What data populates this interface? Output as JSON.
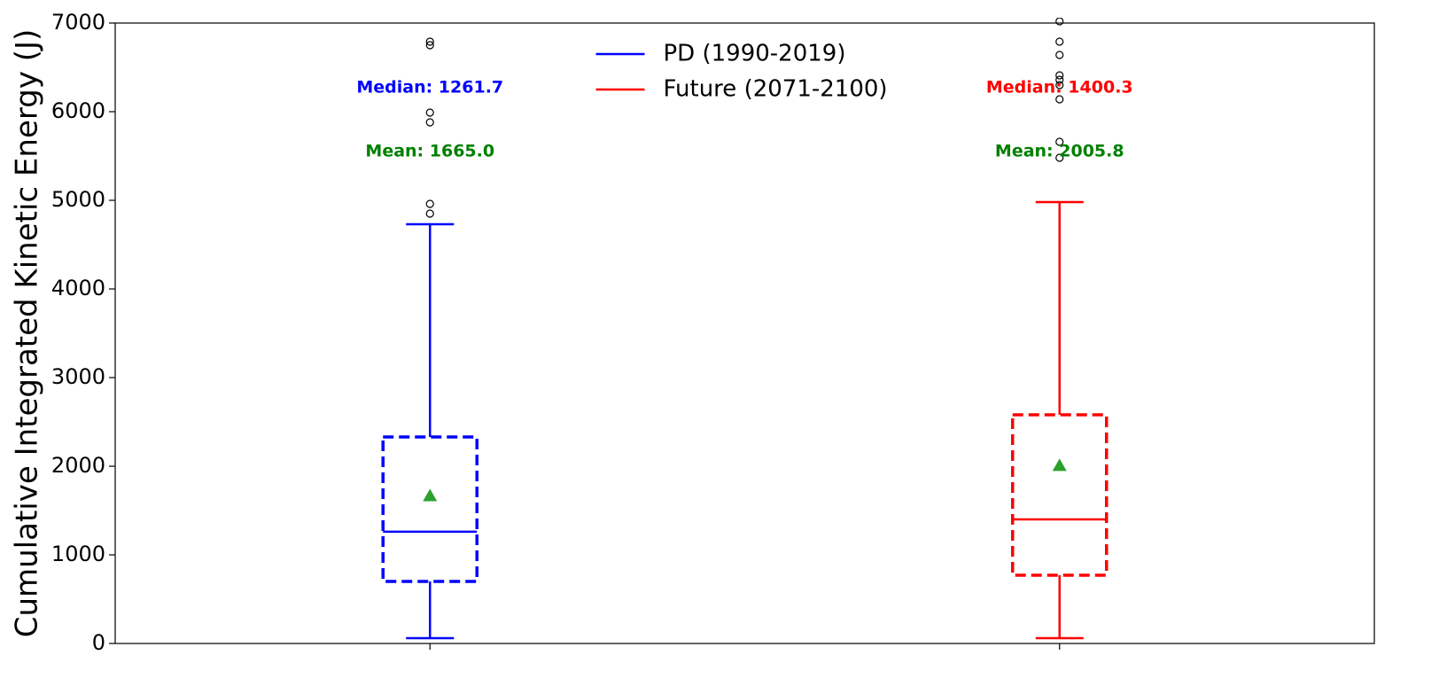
{
  "chart_data": {
    "type": "box",
    "ylabel": "Cumulative Integrated Kinetic Energy (J)",
    "ylim": [
      0,
      7000
    ],
    "yticks": [
      0,
      1000,
      2000,
      3000,
      4000,
      5000,
      6000,
      7000
    ],
    "legend": "upper center",
    "mean_color": "#2ca02c",
    "mean_label_color": "#008000",
    "series": [
      {
        "name": "PD (1990-2019)",
        "color": "#0000ff",
        "whislo": 60,
        "q1": 700,
        "median": 1261.7,
        "q3": 2330,
        "whishi": 4730,
        "mean": 1665.0,
        "median_label": "Median: 1261.7",
        "mean_label": "Mean: 1665.0",
        "fliers": [
          4850,
          4960,
          5880,
          5990,
          6750,
          6790
        ]
      },
      {
        "name": "Future (2071-2100)",
        "color": "#ff0000",
        "whislo": 60,
        "q1": 770,
        "median": 1400.3,
        "q3": 2580,
        "whishi": 4980,
        "mean": 2005.8,
        "median_label": "Median: 1400.3",
        "mean_label": "Mean: 2005.8",
        "fliers": [
          5480,
          5660,
          6140,
          6300,
          6360,
          6410,
          6640,
          6790,
          7020
        ]
      }
    ]
  }
}
